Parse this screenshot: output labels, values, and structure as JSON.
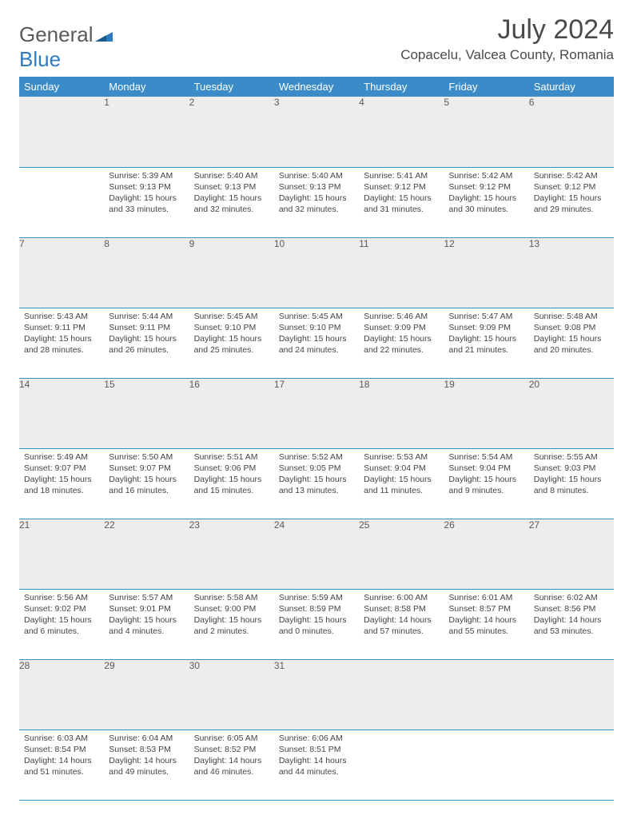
{
  "logo": {
    "word1": "General",
    "word2": "Blue"
  },
  "title": "July 2024",
  "location": "Copacelu, Valcea County, Romania",
  "colors": {
    "header_bg": "#3b8bc8",
    "header_text": "#ffffff",
    "daynum_bg": "#ededed",
    "border": "#3b8bc8",
    "logo_gray": "#5a5a5a",
    "logo_blue": "#2f7bbf"
  },
  "day_headers": [
    "Sunday",
    "Monday",
    "Tuesday",
    "Wednesday",
    "Thursday",
    "Friday",
    "Saturday"
  ],
  "weeks": [
    {
      "nums": [
        "",
        "1",
        "2",
        "3",
        "4",
        "5",
        "6"
      ],
      "cells": [
        null,
        {
          "sunrise": "5:39 AM",
          "sunset": "9:13 PM",
          "daylight": "15 hours and 33 minutes."
        },
        {
          "sunrise": "5:40 AM",
          "sunset": "9:13 PM",
          "daylight": "15 hours and 32 minutes."
        },
        {
          "sunrise": "5:40 AM",
          "sunset": "9:13 PM",
          "daylight": "15 hours and 32 minutes."
        },
        {
          "sunrise": "5:41 AM",
          "sunset": "9:12 PM",
          "daylight": "15 hours and 31 minutes."
        },
        {
          "sunrise": "5:42 AM",
          "sunset": "9:12 PM",
          "daylight": "15 hours and 30 minutes."
        },
        {
          "sunrise": "5:42 AM",
          "sunset": "9:12 PM",
          "daylight": "15 hours and 29 minutes."
        }
      ]
    },
    {
      "nums": [
        "7",
        "8",
        "9",
        "10",
        "11",
        "12",
        "13"
      ],
      "cells": [
        {
          "sunrise": "5:43 AM",
          "sunset": "9:11 PM",
          "daylight": "15 hours and 28 minutes."
        },
        {
          "sunrise": "5:44 AM",
          "sunset": "9:11 PM",
          "daylight": "15 hours and 26 minutes."
        },
        {
          "sunrise": "5:45 AM",
          "sunset": "9:10 PM",
          "daylight": "15 hours and 25 minutes."
        },
        {
          "sunrise": "5:45 AM",
          "sunset": "9:10 PM",
          "daylight": "15 hours and 24 minutes."
        },
        {
          "sunrise": "5:46 AM",
          "sunset": "9:09 PM",
          "daylight": "15 hours and 22 minutes."
        },
        {
          "sunrise": "5:47 AM",
          "sunset": "9:09 PM",
          "daylight": "15 hours and 21 minutes."
        },
        {
          "sunrise": "5:48 AM",
          "sunset": "9:08 PM",
          "daylight": "15 hours and 20 minutes."
        }
      ]
    },
    {
      "nums": [
        "14",
        "15",
        "16",
        "17",
        "18",
        "19",
        "20"
      ],
      "cells": [
        {
          "sunrise": "5:49 AM",
          "sunset": "9:07 PM",
          "daylight": "15 hours and 18 minutes."
        },
        {
          "sunrise": "5:50 AM",
          "sunset": "9:07 PM",
          "daylight": "15 hours and 16 minutes."
        },
        {
          "sunrise": "5:51 AM",
          "sunset": "9:06 PM",
          "daylight": "15 hours and 15 minutes."
        },
        {
          "sunrise": "5:52 AM",
          "sunset": "9:05 PM",
          "daylight": "15 hours and 13 minutes."
        },
        {
          "sunrise": "5:53 AM",
          "sunset": "9:04 PM",
          "daylight": "15 hours and 11 minutes."
        },
        {
          "sunrise": "5:54 AM",
          "sunset": "9:04 PM",
          "daylight": "15 hours and 9 minutes."
        },
        {
          "sunrise": "5:55 AM",
          "sunset": "9:03 PM",
          "daylight": "15 hours and 8 minutes."
        }
      ]
    },
    {
      "nums": [
        "21",
        "22",
        "23",
        "24",
        "25",
        "26",
        "27"
      ],
      "cells": [
        {
          "sunrise": "5:56 AM",
          "sunset": "9:02 PM",
          "daylight": "15 hours and 6 minutes."
        },
        {
          "sunrise": "5:57 AM",
          "sunset": "9:01 PM",
          "daylight": "15 hours and 4 minutes."
        },
        {
          "sunrise": "5:58 AM",
          "sunset": "9:00 PM",
          "daylight": "15 hours and 2 minutes."
        },
        {
          "sunrise": "5:59 AM",
          "sunset": "8:59 PM",
          "daylight": "15 hours and 0 minutes."
        },
        {
          "sunrise": "6:00 AM",
          "sunset": "8:58 PM",
          "daylight": "14 hours and 57 minutes."
        },
        {
          "sunrise": "6:01 AM",
          "sunset": "8:57 PM",
          "daylight": "14 hours and 55 minutes."
        },
        {
          "sunrise": "6:02 AM",
          "sunset": "8:56 PM",
          "daylight": "14 hours and 53 minutes."
        }
      ]
    },
    {
      "nums": [
        "28",
        "29",
        "30",
        "31",
        "",
        "",
        ""
      ],
      "cells": [
        {
          "sunrise": "6:03 AM",
          "sunset": "8:54 PM",
          "daylight": "14 hours and 51 minutes."
        },
        {
          "sunrise": "6:04 AM",
          "sunset": "8:53 PM",
          "daylight": "14 hours and 49 minutes."
        },
        {
          "sunrise": "6:05 AM",
          "sunset": "8:52 PM",
          "daylight": "14 hours and 46 minutes."
        },
        {
          "sunrise": "6:06 AM",
          "sunset": "8:51 PM",
          "daylight": "14 hours and 44 minutes."
        },
        null,
        null,
        null
      ]
    }
  ],
  "labels": {
    "sunrise_prefix": "Sunrise: ",
    "sunset_prefix": "Sunset: ",
    "daylight_prefix": "Daylight: "
  }
}
